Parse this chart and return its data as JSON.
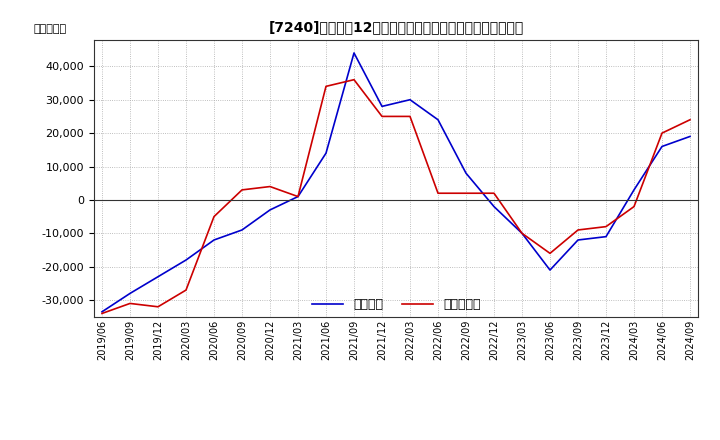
{
  "title": "[7240]　利益の12か月移動合計の対前年同期増減額の推移",
  "ylabel": "（百万円）",
  "legend_labels": [
    "経常利益",
    "当期純利益"
  ],
  "line_colors": [
    "#0000cc",
    "#cc0000"
  ],
  "ylim": [
    -35000,
    48000
  ],
  "yticks": [
    -30000,
    -20000,
    -10000,
    0,
    10000,
    20000,
    30000,
    40000
  ],
  "background_color": "#ffffff",
  "grid_color": "#aaaaaa",
  "dates": [
    "2019/06",
    "2019/09",
    "2019/12",
    "2020/03",
    "2020/06",
    "2020/09",
    "2020/12",
    "2021/03",
    "2021/06",
    "2021/09",
    "2021/12",
    "2022/03",
    "2022/06",
    "2022/09",
    "2022/12",
    "2023/03",
    "2023/06",
    "2023/09",
    "2023/12",
    "2024/03",
    "2024/06",
    "2024/09"
  ],
  "operating_profit": [
    -33500,
    -28000,
    -23000,
    -18000,
    -12000,
    -9000,
    -3000,
    1000,
    14000,
    44000,
    28000,
    30000,
    24000,
    8000,
    -2000,
    -10000,
    -21000,
    -12000,
    -11000,
    3000,
    16000,
    19000
  ],
  "net_profit": [
    -34000,
    -31000,
    -32000,
    -27000,
    -5000,
    3000,
    4000,
    1000,
    34000,
    36000,
    25000,
    25000,
    2000,
    2000,
    2000,
    -10000,
    -16000,
    -9000,
    -8000,
    -2000,
    20000,
    24000
  ]
}
